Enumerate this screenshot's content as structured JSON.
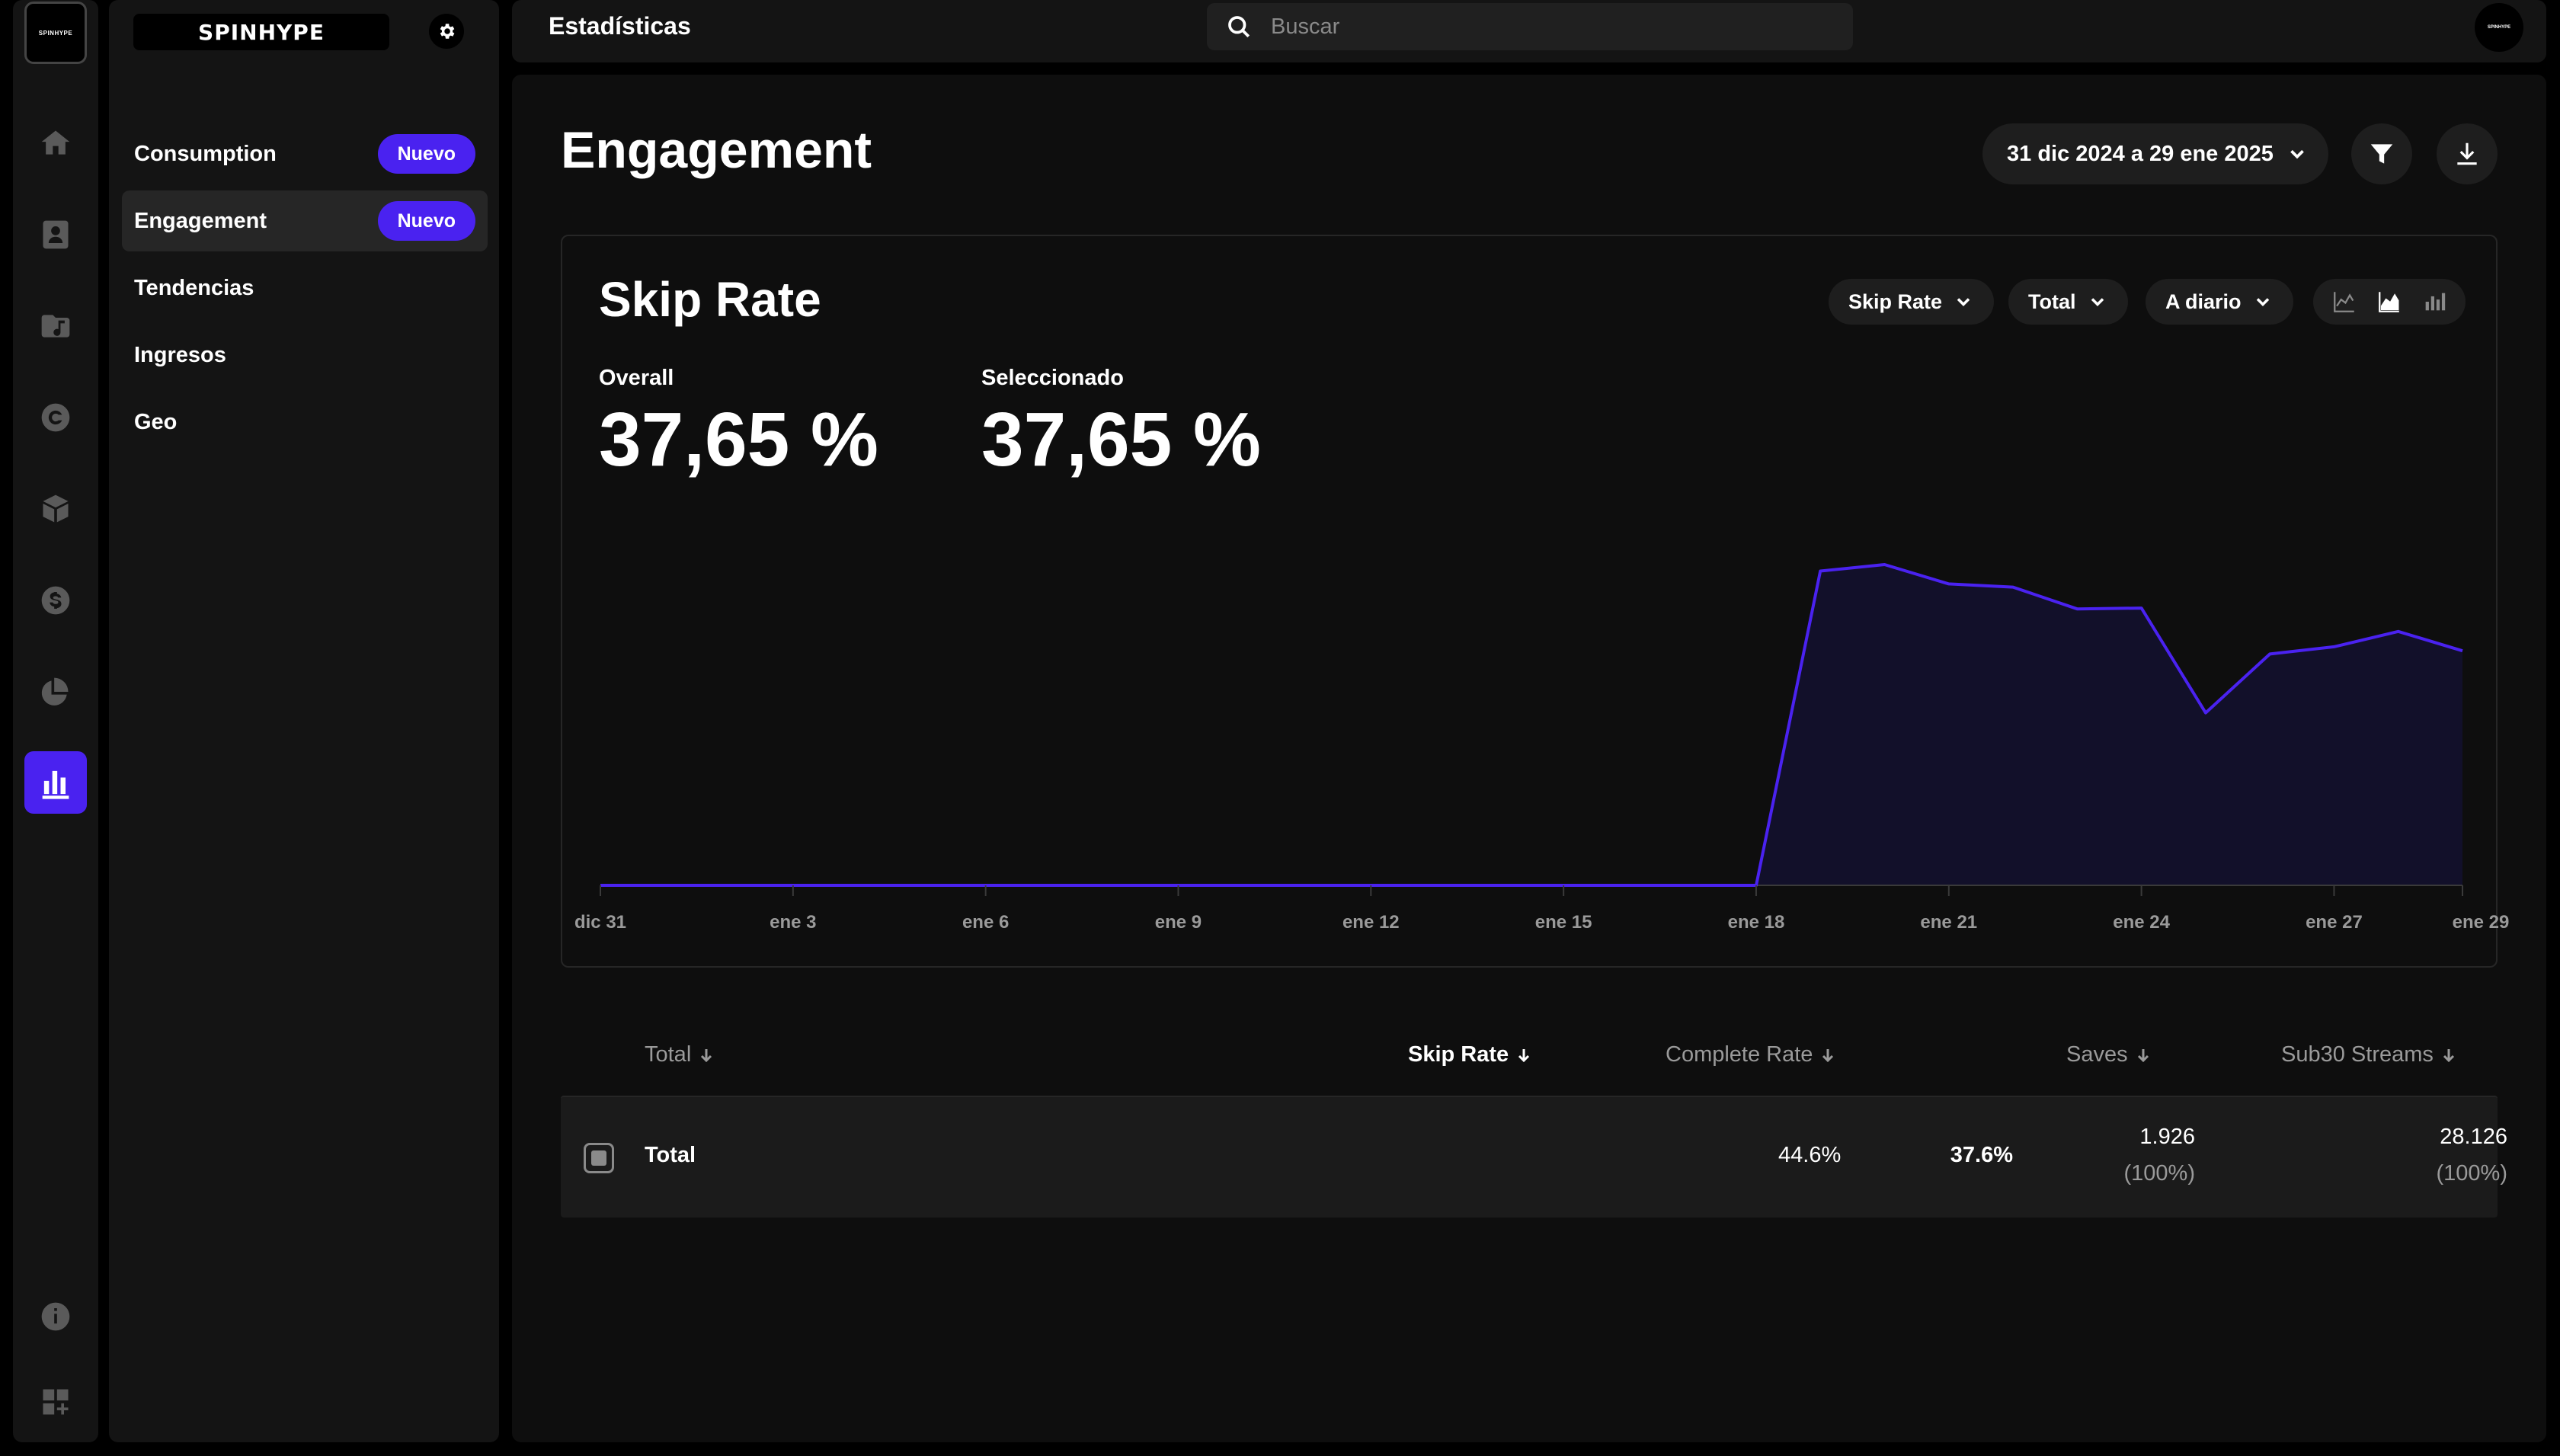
{
  "app": {
    "logo_text": "SPINHYPE",
    "rail_logo_text": "SPINHYPE",
    "avatar_text": "SPINHYPE"
  },
  "rail": {
    "items": [
      {
        "icon": "home-icon"
      },
      {
        "icon": "artist-icon"
      },
      {
        "icon": "music-folder-icon"
      },
      {
        "icon": "copyright-icon"
      },
      {
        "icon": "package-icon"
      },
      {
        "icon": "dollar-icon"
      },
      {
        "icon": "pie-chart-icon"
      },
      {
        "icon": "bar-chart-icon",
        "active": true
      },
      {
        "icon": "info-icon"
      },
      {
        "icon": "apps-icon"
      }
    ],
    "accent_color": "#4a22f0"
  },
  "sidebar": {
    "items": [
      {
        "label": "Consumption",
        "badge": "Nuevo"
      },
      {
        "label": "Engagement",
        "badge": "Nuevo",
        "active": true
      },
      {
        "label": "Tendencias"
      },
      {
        "label": "Ingresos"
      },
      {
        "label": "Geo"
      }
    ]
  },
  "topbar": {
    "title": "Estadísticas",
    "search_placeholder": "Buscar"
  },
  "main": {
    "heading": "Engagement",
    "date_range": "31 dic 2024 a 29 ene 2025"
  },
  "card": {
    "title": "Skip Rate",
    "metric_select": "Skip Rate",
    "group_select": "Total",
    "interval_select": "A diario",
    "overall_label": "Overall",
    "overall_value": "37,65 %",
    "selected_label": "Seleccionado",
    "selected_value": "37,65 %"
  },
  "chart_data": {
    "type": "area",
    "x_ticks": [
      "dic 31",
      "ene 3",
      "ene 6",
      "ene 9",
      "ene 12",
      "ene 15",
      "ene 18",
      "ene 21",
      "ene 24",
      "ene 27",
      "ene 29"
    ],
    "x": [
      "dic 31",
      "ene 1",
      "ene 2",
      "ene 3",
      "ene 4",
      "ene 5",
      "ene 6",
      "ene 7",
      "ene 8",
      "ene 9",
      "ene 10",
      "ene 11",
      "ene 12",
      "ene 13",
      "ene 14",
      "ene 15",
      "ene 16",
      "ene 17",
      "ene 18",
      "ene 19",
      "ene 20",
      "ene 21",
      "ene 22",
      "ene 23",
      "ene 24",
      "ene 25",
      "ene 26",
      "ene 27",
      "ene 28",
      "ene 29"
    ],
    "values": [
      0,
      0,
      0,
      0,
      0,
      0,
      0,
      0,
      0,
      0,
      0,
      0,
      0,
      0,
      0,
      0,
      0,
      0,
      0,
      39,
      39.8,
      37.4,
      37,
      34.3,
      34.4,
      21.4,
      28.7,
      29.6,
      31.5,
      29.1
    ],
    "ylim": [
      0,
      45
    ],
    "line_color": "#4a22f0",
    "fill_color": "#12102a",
    "grid": false
  },
  "table": {
    "headers": [
      {
        "label": "Total"
      },
      {
        "label": "Skip Rate",
        "active": true
      },
      {
        "label": "Complete Rate"
      },
      {
        "label": "Saves"
      },
      {
        "label": "Sub30 Streams"
      }
    ],
    "row": {
      "name": "Total",
      "skip_rate": "37.6%",
      "complete_rate": "44.6%",
      "saves": "1.926",
      "saves_pct": "(100%)",
      "sub30": "28.126",
      "sub30_pct": "(100%)"
    }
  }
}
